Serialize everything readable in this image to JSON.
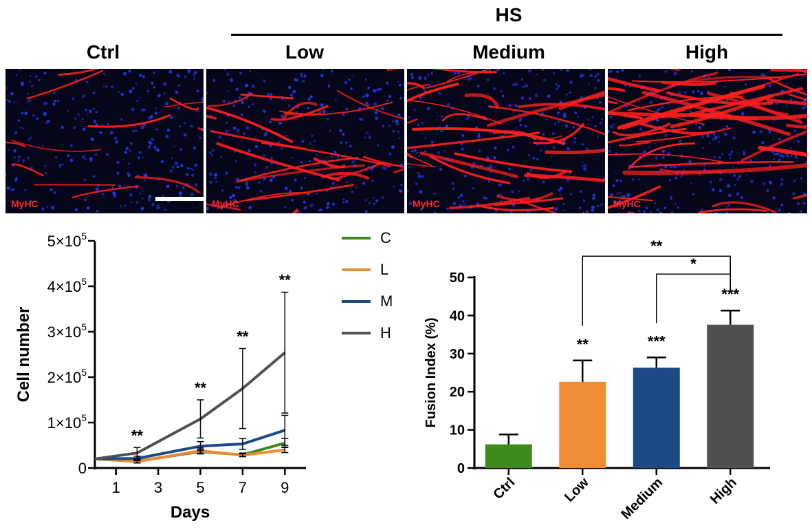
{
  "headers": {
    "hs": "HS",
    "ctrl": "Ctrl",
    "low": "Low",
    "medium": "Medium",
    "high": "High"
  },
  "panels": [
    {
      "label": "MyHC",
      "condition": "Ctrl",
      "scale_bar": true,
      "fiber_density": 0.15
    },
    {
      "label": "MyHC",
      "condition": "Low",
      "scale_bar": false,
      "fiber_density": 0.45
    },
    {
      "label": "MyHC",
      "condition": "Medium",
      "scale_bar": false,
      "fiber_density": 0.7
    },
    {
      "label": "MyHC",
      "condition": "High",
      "scale_bar": false,
      "fiber_density": 1.0
    }
  ],
  "colors": {
    "C": "#3e8a1c",
    "L": "#ef8b33",
    "M": "#1b4a86",
    "H": "#505050",
    "fiber": "#ff1f1f",
    "nuclei": "#2a3cff"
  },
  "chart_data": [
    {
      "type": "line",
      "ylabel": "Cell number",
      "xlabel": "Days",
      "x": [
        0,
        2,
        5,
        7,
        9
      ],
      "xticks": [
        "1",
        "3",
        "5",
        "7",
        "9"
      ],
      "xtick_values": [
        1,
        3,
        5,
        7,
        9
      ],
      "xlim": [
        0,
        10
      ],
      "ylim": [
        0,
        500000
      ],
      "yticks": [
        {
          "v": 0,
          "base": "0",
          "exp": ""
        },
        {
          "v": 100000,
          "base": "1×10",
          "exp": "5"
        },
        {
          "v": 200000,
          "base": "2×10",
          "exp": "5"
        },
        {
          "v": 300000,
          "base": "3×10",
          "exp": "5"
        },
        {
          "v": 400000,
          "base": "4×10",
          "exp": "5"
        },
        {
          "v": 500000,
          "base": "5×10",
          "exp": "5"
        }
      ],
      "series": [
        {
          "name": "C",
          "values": [
            20000,
            15000,
            36000,
            29000,
            55000
          ],
          "err": [
            0,
            4000,
            5000,
            4000,
            10000
          ]
        },
        {
          "name": "L",
          "values": [
            20000,
            14000,
            38000,
            28000,
            40000
          ],
          "err": [
            0,
            3000,
            6000,
            3000,
            6000
          ]
        },
        {
          "name": "M",
          "values": [
            20000,
            21000,
            48000,
            53000,
            83000
          ],
          "err": [
            0,
            5000,
            10000,
            12000,
            33000
          ]
        },
        {
          "name": "H",
          "values": [
            20000,
            33000,
            108000,
            175000,
            254000
          ],
          "err": [
            0,
            12000,
            42000,
            88000,
            133000
          ]
        }
      ],
      "annotations": [
        {
          "x": 2,
          "text": "**"
        },
        {
          "x": 5,
          "text": "**"
        },
        {
          "x": 7,
          "text": "**"
        },
        {
          "x": 9,
          "text": "**"
        }
      ],
      "legend": "right"
    },
    {
      "type": "bar",
      "ylabel": "Fusion Index (%)",
      "categories": [
        "Ctrl",
        "Low",
        "Medium",
        "High"
      ],
      "values": [
        6.2,
        22.6,
        26.3,
        37.6
      ],
      "err": [
        2.6,
        5.6,
        2.7,
        3.7
      ],
      "ylim": [
        0,
        50
      ],
      "yticks": [
        0,
        10,
        20,
        30,
        40,
        50
      ],
      "bar_stars": [
        "",
        "**",
        "***",
        "***"
      ],
      "brackets": [
        {
          "from": "Low",
          "to": "High",
          "text": "**"
        },
        {
          "from": "Medium",
          "to": "High",
          "text": "*"
        }
      ]
    }
  ]
}
